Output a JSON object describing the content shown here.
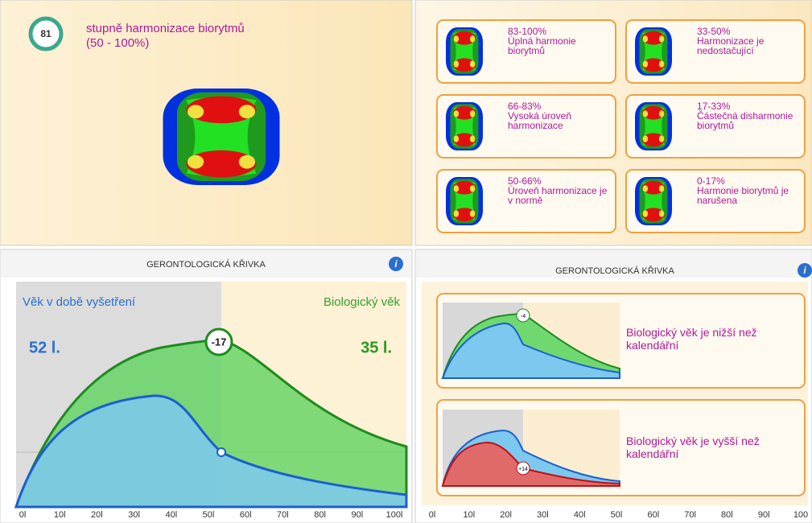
{
  "harmonization": {
    "score": "81",
    "title": "stupně harmonizace biorytmů",
    "range": "(50 - 100%)"
  },
  "legend": [
    {
      "range": "83-100%",
      "text": "Úplná harmonie biorytmů"
    },
    {
      "range": "33-50%",
      "text": "Harmonizace je nedostačující"
    },
    {
      "range": "66-83%",
      "text": "Vysoká úroveň harmonizace"
    },
    {
      "range": "17-33%",
      "text": "Částečná disharmonie biorytmů"
    },
    {
      "range": "50-66%",
      "text": "Úroveň harmonizace je v normě"
    },
    {
      "range": "0-17%",
      "text": "Harmonie biorytmů je narušena"
    }
  ],
  "left_panel": {
    "header": "GERONTOLOGICKÁ KŘIVKA",
    "info": "i",
    "age_label": "Věk v době vyšetření",
    "bio_label": "Biologický věk",
    "age": "52 l.",
    "bio_age": "35 l.",
    "difference": "-17",
    "axis_labels": [
      "0l",
      "10l",
      "20l",
      "30l",
      "40l",
      "50l",
      "60l",
      "70l",
      "80l",
      "90l",
      "100l"
    ]
  },
  "right_panel": {
    "header": "GERONTOLOGICKÁ KŘIVKA",
    "info": "i",
    "examples": [
      {
        "difference": "-4",
        "text": "Biologický věk je nižší než kalendářní"
      },
      {
        "difference": "+14",
        "text": "Biologický věk je vyšší než kalendářní"
      }
    ],
    "axis_labels": [
      "0l",
      "10l",
      "20l",
      "30l",
      "40l",
      "50l",
      "60l",
      "70l",
      "80l",
      "90l",
      "100"
    ]
  }
}
